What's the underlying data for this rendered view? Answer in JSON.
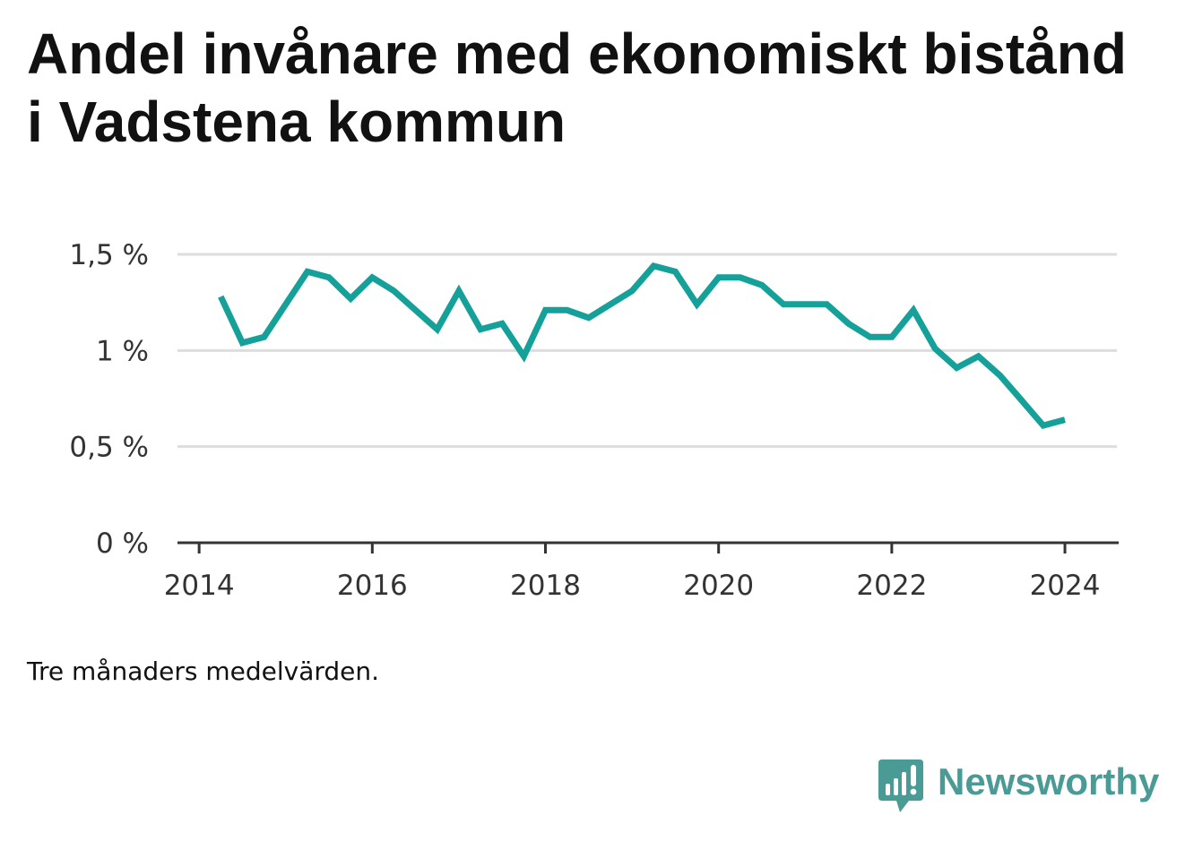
{
  "title": "Andel invånare med ekonomiskt bistånd i Vadstena kommun",
  "footnote": "Tre månaders medelvärden.",
  "brand": {
    "name": "Newsworthy",
    "icon": "bar-chart-speech-bubble-icon",
    "color": "#4a9a96"
  },
  "colors": {
    "line": "#15a09a",
    "grid": "#dddddd",
    "axis": "#333333"
  },
  "chart_data": {
    "type": "line",
    "title": "Andel invånare med ekonomiskt bistånd i Vadstena kommun",
    "xlabel": "",
    "ylabel": "",
    "xlim": [
      2013.75,
      2024.6
    ],
    "ylim": [
      0,
      1.5
    ],
    "x_ticks": [
      {
        "value": 2014,
        "label": "2014"
      },
      {
        "value": 2016,
        "label": "2016"
      },
      {
        "value": 2018,
        "label": "2018"
      },
      {
        "value": 2020,
        "label": "2020"
      },
      {
        "value": 2022,
        "label": "2022"
      },
      {
        "value": 2024,
        "label": "2024"
      }
    ],
    "y_ticks": [
      {
        "value": 0,
        "label": "0 %"
      },
      {
        "value": 0.5,
        "label": "0,5 %"
      },
      {
        "value": 1,
        "label": "1 %"
      },
      {
        "value": 1.5,
        "label": "1,5 %"
      }
    ],
    "grid": true,
    "legend": "none",
    "series": [
      {
        "x": [
          "2014-04",
          "2014-07",
          "2014-10",
          "2015-01",
          "2015-04",
          "2015-07",
          "2015-10",
          "2016-01",
          "2016-04",
          "2016-07",
          "2016-10",
          "2017-01",
          "2017-04",
          "2017-07",
          "2017-10",
          "2018-01",
          "2018-04",
          "2018-07",
          "2018-10",
          "2019-01",
          "2019-04",
          "2019-07",
          "2019-10",
          "2020-01",
          "2020-04",
          "2020-07",
          "2020-10",
          "2021-01",
          "2021-04",
          "2021-07",
          "2021-10",
          "2022-01",
          "2022-04",
          "2022-07",
          "2022-10",
          "2023-01",
          "2023-04",
          "2023-07",
          "2023-10",
          "2024-01"
        ],
        "values": [
          1.28,
          1.04,
          1.07,
          1.24,
          1.41,
          1.38,
          1.27,
          1.38,
          1.31,
          1.21,
          1.11,
          1.31,
          1.11,
          1.14,
          0.97,
          1.21,
          1.21,
          1.17,
          1.24,
          1.31,
          1.44,
          1.41,
          1.24,
          1.38,
          1.38,
          1.34,
          1.24,
          1.24,
          1.24,
          1.14,
          1.07,
          1.07,
          1.21,
          1.01,
          0.91,
          0.97,
          0.87,
          0.74,
          0.61,
          0.64
        ]
      }
    ]
  }
}
